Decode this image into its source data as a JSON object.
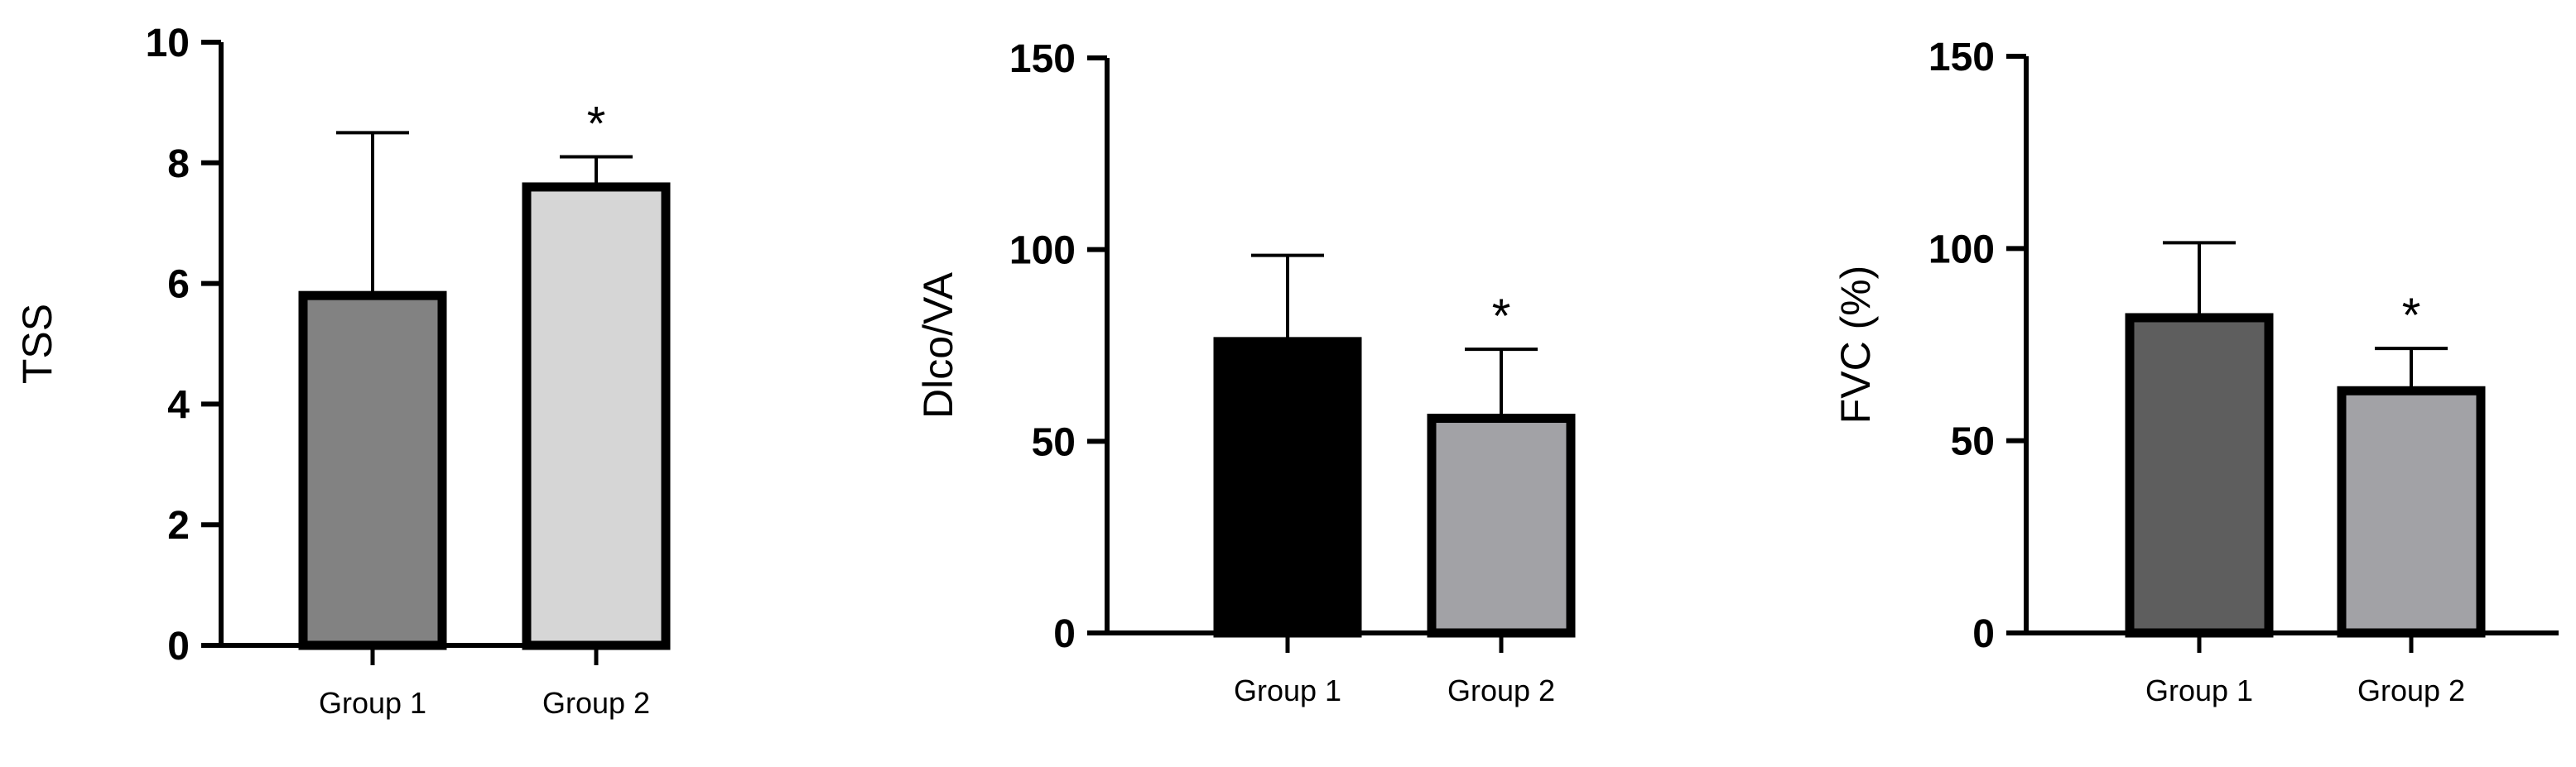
{
  "chart_data": [
    {
      "type": "bar",
      "categories": [
        "Group 1",
        "Group 2"
      ],
      "values": [
        5.8,
        7.6
      ],
      "errors": [
        2.7,
        0.5
      ],
      "significance": [
        "",
        "*"
      ],
      "bar_colors": [
        "#828282",
        "#d6d6d6"
      ],
      "title": "",
      "xlabel": "",
      "ylabel": "TSS",
      "ylim": [
        0,
        10
      ],
      "yticks": [
        0,
        2,
        4,
        6,
        8,
        10
      ],
      "grid": false,
      "legend": "none"
    },
    {
      "type": "bar",
      "categories": [
        "Group 1",
        "Group 2"
      ],
      "values": [
        76,
        56
      ],
      "errors": [
        22.5,
        18
      ],
      "significance": [
        "",
        "*"
      ],
      "bar_colors": [
        "#000000",
        "#a2a2a6"
      ],
      "title": "",
      "xlabel": "",
      "ylabel": "Dlco/VA",
      "ylim": [
        0,
        150
      ],
      "yticks": [
        0,
        50,
        100,
        150
      ],
      "grid": false,
      "legend": "none"
    },
    {
      "type": "bar",
      "categories": [
        "Group 1",
        "Group 2"
      ],
      "values": [
        82,
        63
      ],
      "errors": [
        19.5,
        11
      ],
      "significance": [
        "",
        "*"
      ],
      "bar_colors": [
        "#5e5e5e",
        "#a2a2a6"
      ],
      "title": "",
      "xlabel": "",
      "ylabel": "FVC (%)",
      "ylim": [
        0,
        150
      ],
      "yticks": [
        0,
        50,
        100,
        150
      ],
      "grid": false,
      "legend": "none"
    }
  ]
}
